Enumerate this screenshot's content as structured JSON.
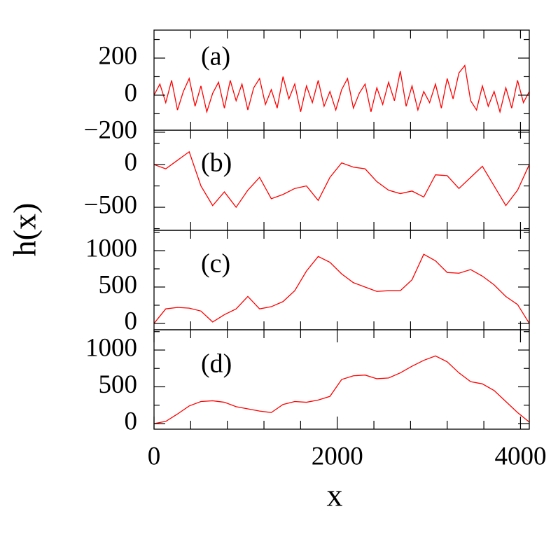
{
  "axes": {
    "xlabel": "x",
    "ylabel": "h(x)"
  },
  "chart_data": [
    {
      "type": "line",
      "annotation": "(a)",
      "color": "#ff0000",
      "x": [
        0,
        64,
        128,
        192,
        256,
        320,
        384,
        448,
        512,
        576,
        640,
        704,
        768,
        832,
        896,
        960,
        1024,
        1088,
        1152,
        1216,
        1280,
        1344,
        1408,
        1472,
        1536,
        1600,
        1664,
        1728,
        1792,
        1856,
        1920,
        1984,
        2048,
        2112,
        2176,
        2240,
        2304,
        2368,
        2432,
        2496,
        2560,
        2624,
        2688,
        2752,
        2816,
        2880,
        2944,
        3008,
        3072,
        3136,
        3200,
        3264,
        3328,
        3392,
        3456,
        3520,
        3584,
        3648,
        3712,
        3776,
        3840,
        3904,
        3968,
        4032,
        4096
      ],
      "values": [
        0,
        60,
        -40,
        80,
        -80,
        20,
        90,
        -60,
        50,
        -90,
        10,
        70,
        -70,
        80,
        -30,
        60,
        -80,
        40,
        90,
        -50,
        30,
        -70,
        100,
        -20,
        60,
        -90,
        50,
        -40,
        80,
        -60,
        20,
        -80,
        30,
        90,
        -70,
        10,
        60,
        -90,
        40,
        -50,
        70,
        -30,
        130,
        -60,
        50,
        -80,
        20,
        -40,
        60,
        -70,
        90,
        -20,
        120,
        160,
        -30,
        -80,
        50,
        -60,
        20,
        -90,
        40,
        -70,
        80,
        -40,
        20
      ],
      "xlim": [
        0,
        4096
      ],
      "xminorticks": [
        400,
        800,
        1200,
        1600,
        2000,
        2400,
        2800,
        3200,
        3600,
        4000
      ],
      "ylim": [
        -189,
        351
      ],
      "yticks": [
        {
          "value": -200,
          "label": "−200"
        },
        0,
        200
      ],
      "yminorticks": [
        -100,
        100,
        300
      ]
    },
    {
      "type": "line",
      "annotation": "(b)",
      "color": "#ff0000",
      "x": [
        0,
        128,
        256,
        384,
        512,
        640,
        768,
        896,
        1024,
        1152,
        1280,
        1408,
        1536,
        1664,
        1792,
        1920,
        2048,
        2176,
        2304,
        2432,
        2560,
        2688,
        2816,
        2944,
        3072,
        3200,
        3328,
        3456,
        3584,
        3712,
        3840,
        3968,
        4096
      ],
      "values": [
        0,
        -50,
        50,
        150,
        -250,
        -480,
        -320,
        -500,
        -300,
        -150,
        -400,
        -350,
        -280,
        -250,
        -420,
        -150,
        20,
        -30,
        -50,
        -200,
        -300,
        -340,
        -310,
        -380,
        -120,
        -130,
        -280,
        -150,
        -20,
        -250,
        -480,
        -300,
        0
      ],
      "xlim": [
        0,
        4096
      ],
      "xminorticks": [
        400,
        800,
        1200,
        1600,
        2000,
        2400,
        2800,
        3200,
        3600,
        4000
      ],
      "ylim": [
        -770,
        402
      ],
      "yticks": [
        {
          "value": -500,
          "label": "−500"
        },
        0
      ],
      "yminorticks": [
        -750,
        -250,
        250
      ]
    },
    {
      "type": "line",
      "annotation": "(c)",
      "color": "#ff0000",
      "x": [
        0,
        128,
        256,
        384,
        512,
        640,
        768,
        896,
        1024,
        1152,
        1280,
        1408,
        1536,
        1664,
        1792,
        1920,
        2048,
        2176,
        2304,
        2432,
        2560,
        2688,
        2816,
        2944,
        3072,
        3200,
        3328,
        3456,
        3584,
        3712,
        3840,
        3968,
        4096
      ],
      "values": [
        0,
        200,
        220,
        210,
        170,
        20,
        120,
        200,
        370,
        200,
        230,
        300,
        450,
        720,
        920,
        840,
        680,
        560,
        500,
        440,
        450,
        450,
        600,
        950,
        860,
        700,
        690,
        740,
        650,
        530,
        370,
        260,
        0
      ],
      "xlim": [
        0,
        4096
      ],
      "xminorticks": [
        400,
        800,
        1200,
        1600,
        2000,
        2400,
        2800,
        3200,
        3600,
        4000
      ],
      "ylim": [
        -87,
        1279
      ],
      "yticks": [
        0,
        500,
        1000
      ],
      "yminorticks": [
        250,
        750,
        1250
      ]
    },
    {
      "type": "line",
      "annotation": "(d)",
      "color": "#ff0000",
      "x": [
        0,
        128,
        256,
        384,
        512,
        640,
        768,
        896,
        1024,
        1152,
        1280,
        1408,
        1536,
        1664,
        1792,
        1920,
        2048,
        2176,
        2304,
        2432,
        2560,
        2688,
        2816,
        2944,
        3072,
        3200,
        3328,
        3456,
        3584,
        3712,
        3840,
        3968,
        4096
      ],
      "values": [
        0,
        30,
        130,
        240,
        300,
        310,
        290,
        230,
        200,
        170,
        150,
        260,
        300,
        290,
        320,
        370,
        600,
        650,
        660,
        610,
        620,
        690,
        780,
        860,
        920,
        840,
        690,
        570,
        540,
        450,
        300,
        150,
        20
      ],
      "xlim": [
        0,
        4096
      ],
      "xticks": [
        0,
        2000,
        4000
      ],
      "xminorticks": [
        400,
        800,
        1200,
        1600,
        2400,
        2800,
        3200,
        3600
      ],
      "ylim": [
        -76,
        1276
      ],
      "yticks": [
        0,
        500,
        1000
      ],
      "yminorticks": [
        250,
        750,
        1250
      ]
    }
  ]
}
